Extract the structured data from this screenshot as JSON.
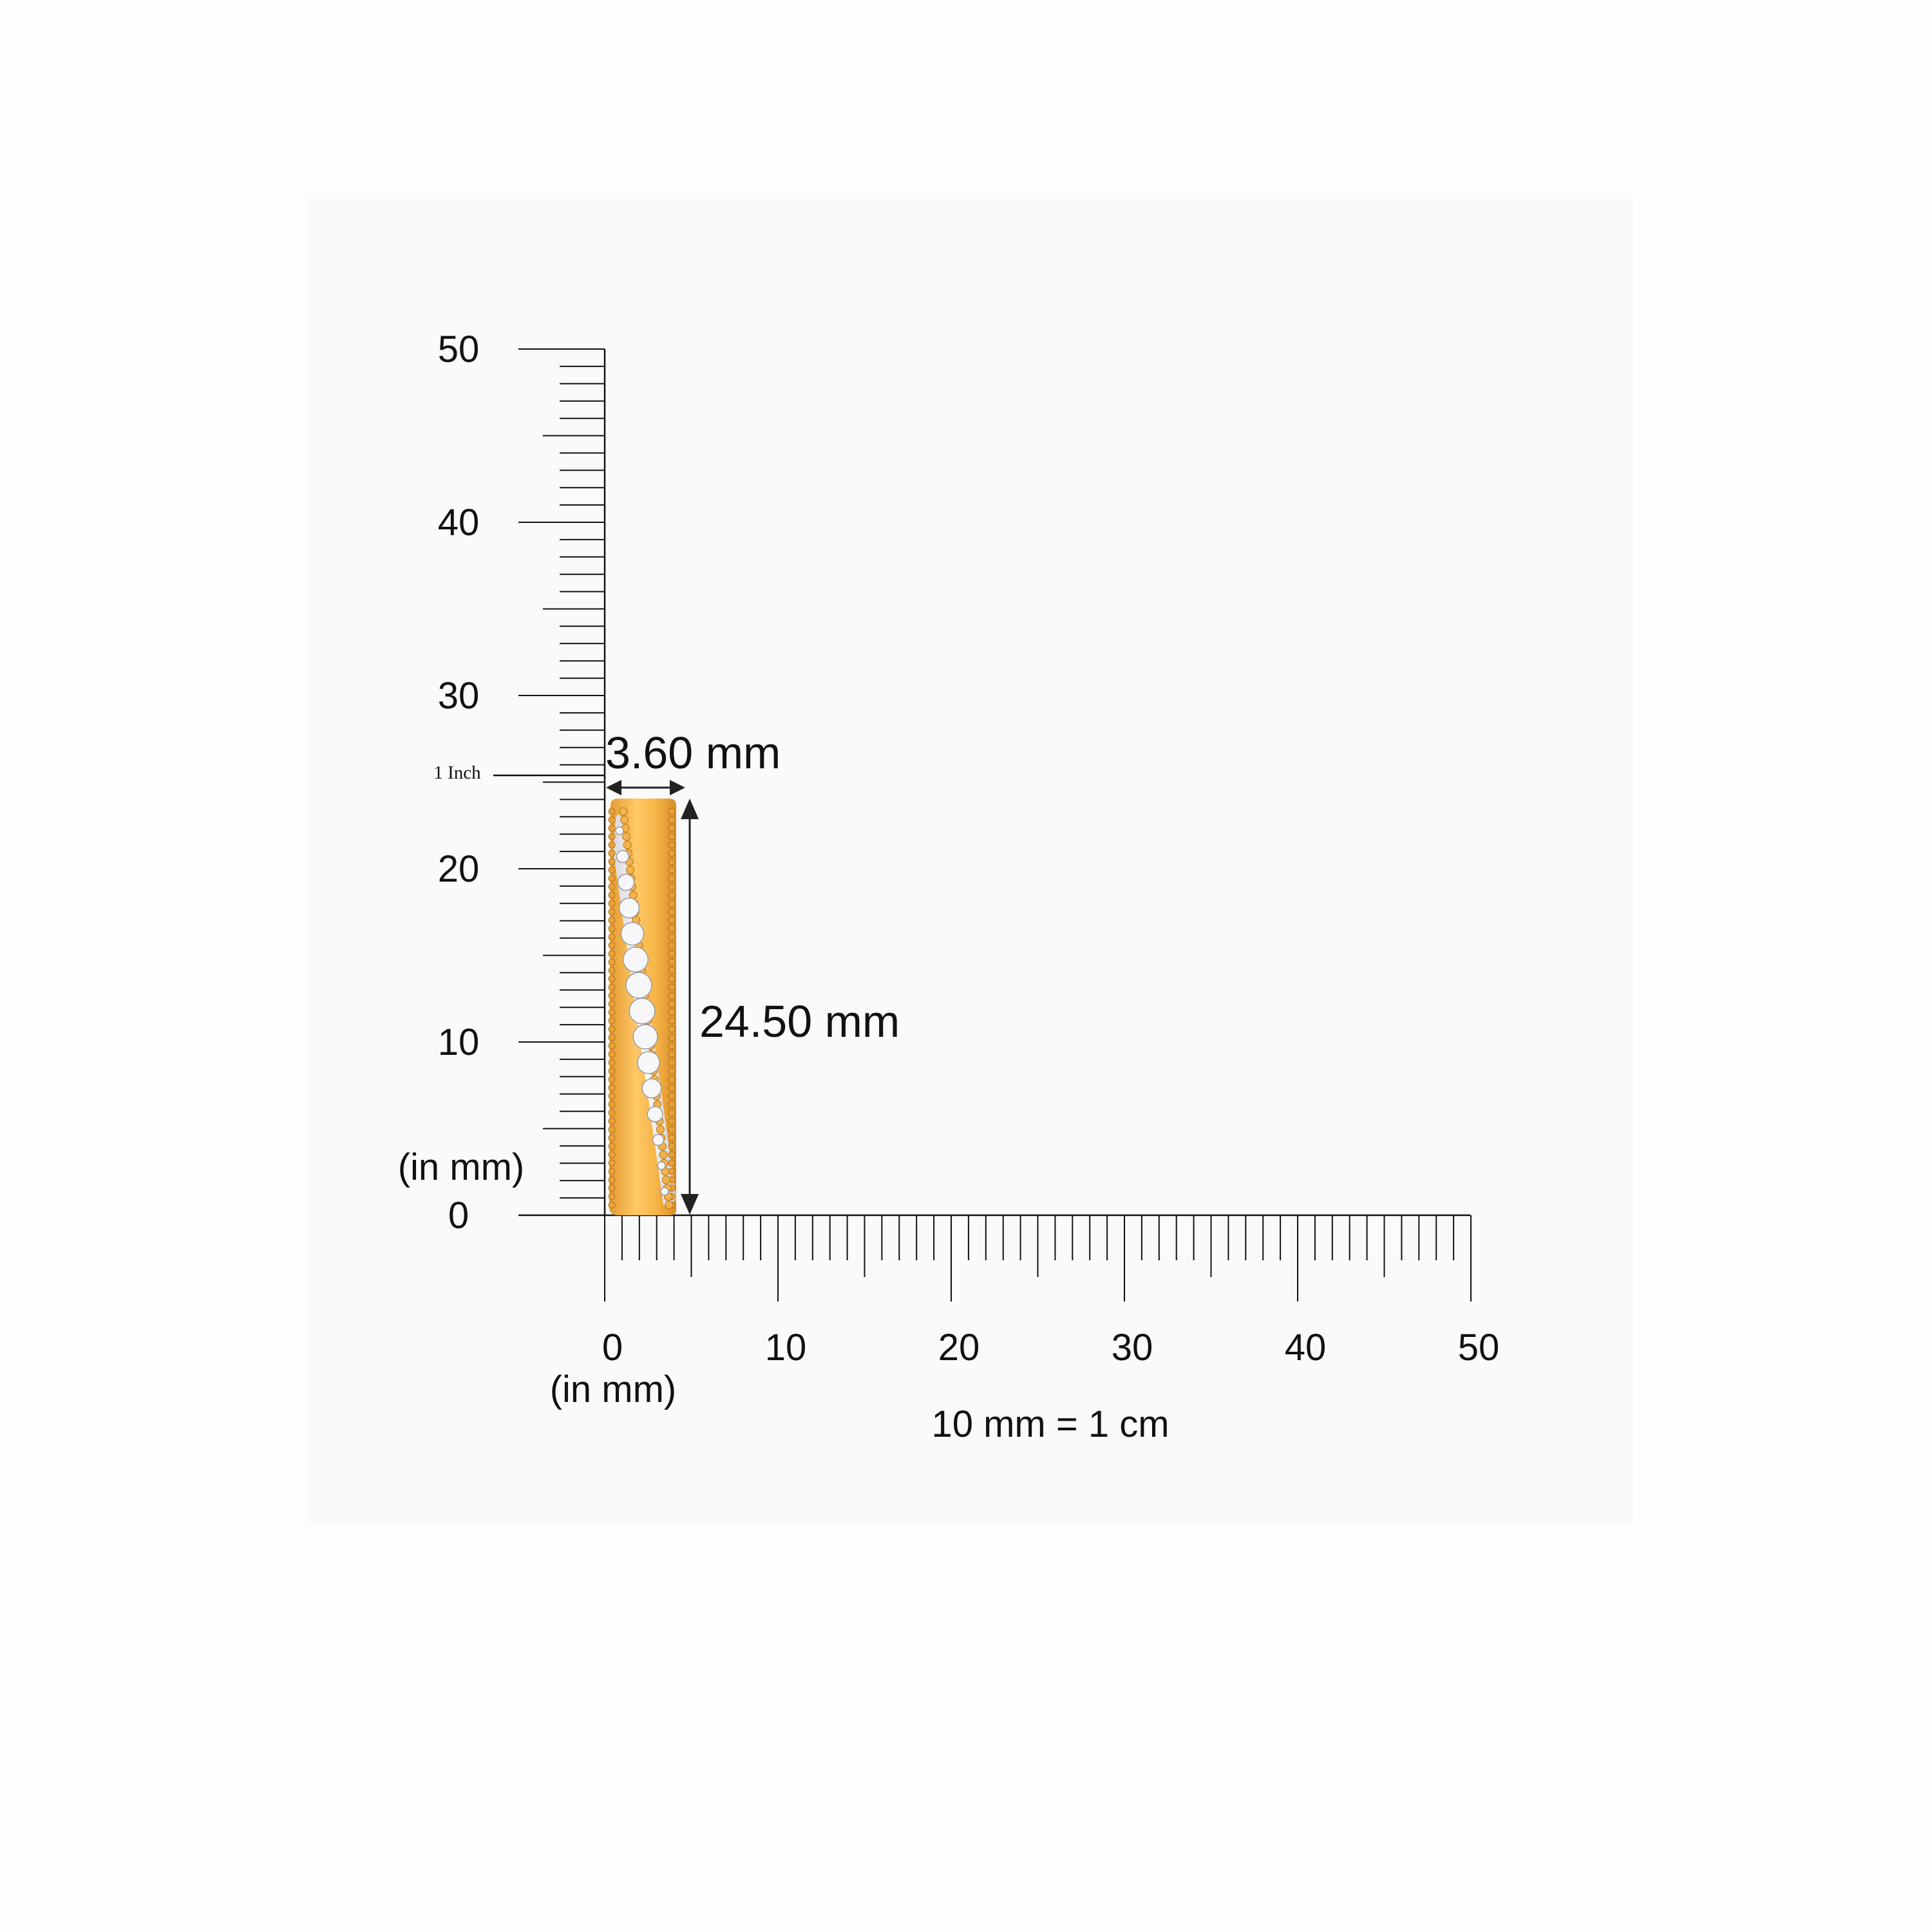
{
  "ruler": {
    "unit_label_vertical": "(in mm)",
    "unit_label_horizontal": "(in mm)",
    "conversion_note": "10 mm = 1 cm",
    "inch_marker_label": "1 Inch",
    "inch_marker_mm": 25.4,
    "range_mm": [
      0,
      50
    ],
    "major_labels": [
      "0",
      "10",
      "20",
      "30",
      "40",
      "50"
    ]
  },
  "dimensions": {
    "width_label": "3.60 mm",
    "width_mm": 3.6,
    "height_label": "24.50 mm",
    "height_mm": 24.5
  },
  "colors": {
    "gold": "#f0b04a",
    "gold_dark": "#d4902a",
    "silver": "#e9e9ec",
    "ink": "#111111",
    "panel": "#fafafa"
  }
}
